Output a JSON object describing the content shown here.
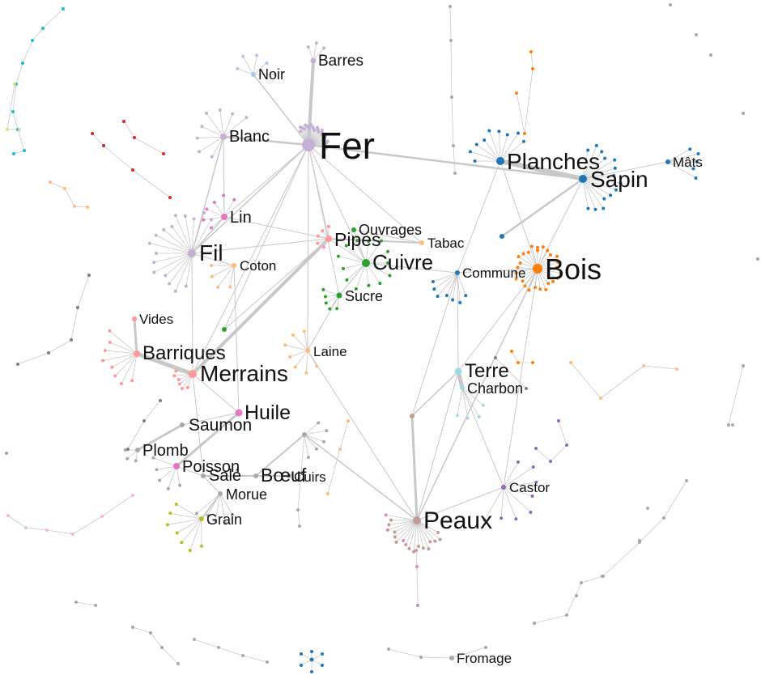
{
  "colors": {
    "edge": "#c8c8c8",
    "purple": "#c5b0d5",
    "lightblue": "#aec7e8",
    "orange": "#ff7f0e",
    "darkblue": "#1f77b4",
    "green": "#2ca02c",
    "red": "#d62728",
    "pink": "#ff9896",
    "peach": "#ffbb78",
    "brown": "#c49c94",
    "violet": "#9467bd",
    "olive": "#bcbd22",
    "cyan": "#17becf",
    "paleblue": "#9edae5",
    "magenta": "#e377c2",
    "lightpink": "#f7b6d2",
    "gray": "#7f7f7f",
    "lightgray": "#a9a9a9",
    "palegreen": "#dbdb8d"
  },
  "labels": {
    "fer": "Fer",
    "barres": "Barres",
    "noir": "Noir",
    "blanc": "Blanc",
    "lin": "Lin",
    "fil": "Fil",
    "coton": "Coton",
    "pipes": "Pipes",
    "ouvrages": "Ouvrages",
    "tabac": "Tabac",
    "cuivre": "Cuivre",
    "sucre": "Sucre",
    "planches": "Planches",
    "sapin": "Sapin",
    "mats": "Mâts",
    "bois": "Bois",
    "commune": "Commune",
    "vides": "Vides",
    "barriques": "Barriques",
    "merrains": "Merrains",
    "laine": "Laine",
    "terre": "Terre",
    "charbon": "Charbon",
    "huile": "Huile",
    "saumon": "Saumon",
    "plomb": "Plomb",
    "poisson": "Poisson",
    "sale": "Salé",
    "boeuf": "Bœuf",
    "cuirs": "Cuirs",
    "morue": "Morue",
    "grain": "Grain",
    "castor": "Castor",
    "peaux": "Peaux",
    "fromage": "Fromage"
  }
}
